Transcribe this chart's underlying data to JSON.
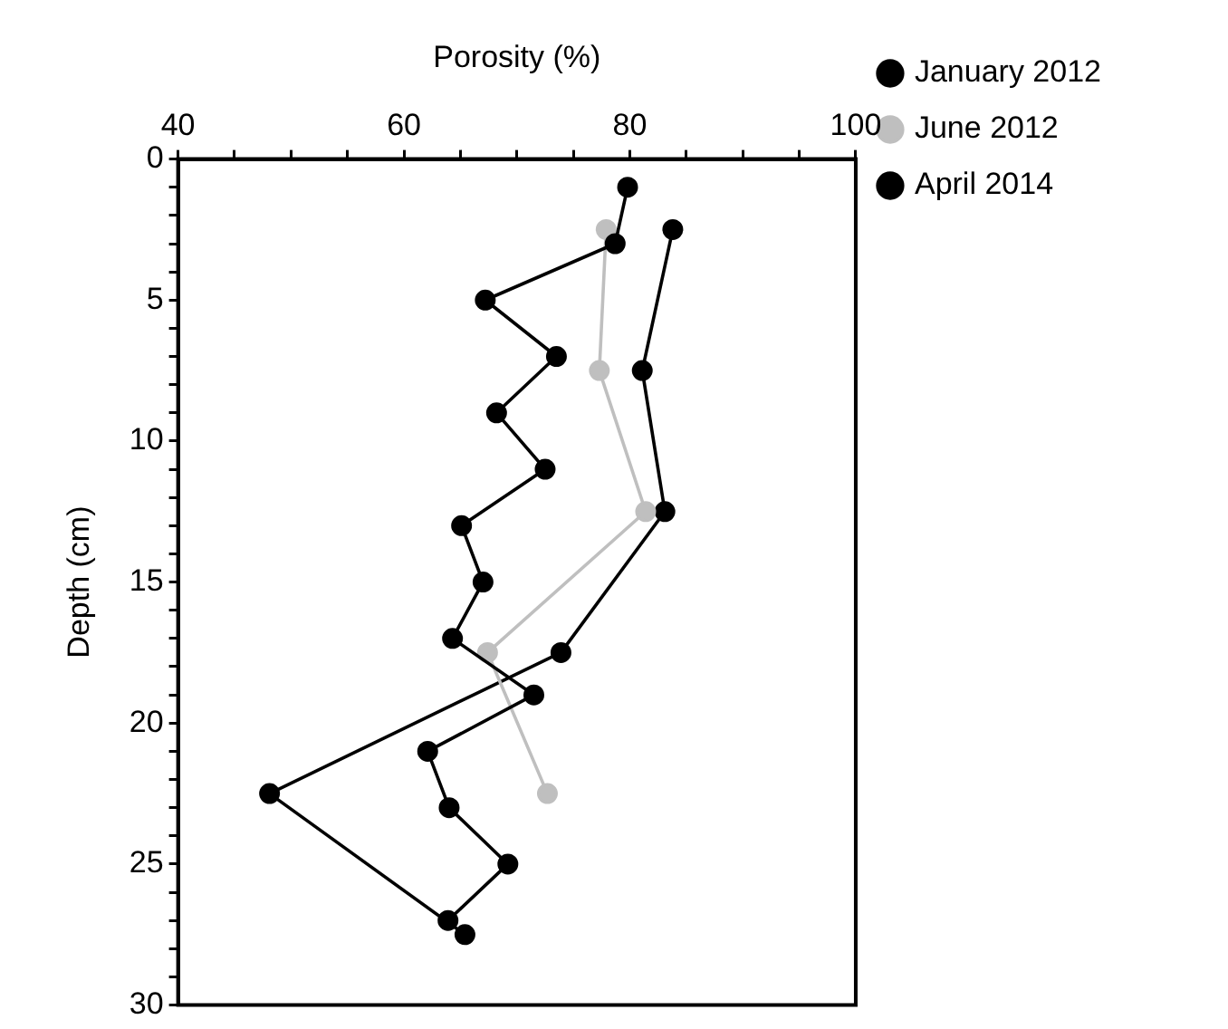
{
  "chart_data": {
    "type": "line",
    "xlabel": "Porosity (%)",
    "ylabel": "Depth (cm)",
    "xlim": [
      40,
      100
    ],
    "xticks": [
      40,
      {
        "value": 45,
        "label": null
      },
      {
        "value": 50,
        "label": null
      },
      {
        "value": 55,
        "label": null
      },
      60,
      {
        "value": 65,
        "label": null
      },
      {
        "value": 70,
        "label": null
      },
      {
        "value": 75,
        "label": null
      },
      80,
      {
        "value": 85,
        "label": null
      },
      {
        "value": 90,
        "label": null
      },
      {
        "value": 95,
        "label": null
      },
      100
    ],
    "ylim": [
      30,
      0
    ],
    "yticks": [
      0,
      {
        "value": 1,
        "label": null
      },
      {
        "value": 2,
        "label": null
      },
      {
        "value": 3,
        "label": null
      },
      {
        "value": 4,
        "label": null
      },
      5,
      {
        "value": 6,
        "label": null
      },
      {
        "value": 7,
        "label": null
      },
      {
        "value": 8,
        "label": null
      },
      {
        "value": 9,
        "label": null
      },
      10,
      {
        "value": 11,
        "label": null
      },
      {
        "value": 12,
        "label": null
      },
      {
        "value": 13,
        "label": null
      },
      {
        "value": 14,
        "label": null
      },
      15,
      {
        "value": 16,
        "label": null
      },
      {
        "value": 17,
        "label": null
      },
      {
        "value": 18,
        "label": null
      },
      {
        "value": 19,
        "label": null
      },
      20,
      {
        "value": 21,
        "label": null
      },
      {
        "value": 22,
        "label": null
      },
      {
        "value": 23,
        "label": null
      },
      {
        "value": 24,
        "label": null
      },
      25,
      {
        "value": 26,
        "label": null
      },
      {
        "value": 27,
        "label": null
      },
      {
        "value": 28,
        "label": null
      },
      {
        "value": 29,
        "label": null
      },
      30
    ],
    "marker": "circle",
    "line_style": "solid",
    "grid": false,
    "legend": "right",
    "series": [
      {
        "name": "January 2012",
        "color": "#000000",
        "x": [
          79.8,
          78.7,
          67.2,
          73.5,
          68.2,
          72.5,
          65.1,
          67.0,
          64.3,
          71.5,
          62.1,
          64.0,
          69.2,
          63.9
        ],
        "values": [
          1,
          3,
          5,
          7,
          9,
          11,
          13,
          15,
          17,
          19,
          21,
          23,
          25,
          27
        ]
      },
      {
        "name": "June 2012",
        "color": "#bfbfbf",
        "x": [
          77.9,
          77.3,
          81.4,
          67.4,
          72.7
        ],
        "values": [
          2.5,
          7.5,
          12.5,
          17.5,
          22.5
        ]
      },
      {
        "name": "April 2014",
        "color": "#000000",
        "x": [
          83.8,
          81.1,
          83.1,
          73.9,
          48.1,
          65.4
        ],
        "values": [
          2.5,
          7.5,
          12.5,
          17.5,
          22.5,
          27.5
        ]
      }
    ]
  }
}
